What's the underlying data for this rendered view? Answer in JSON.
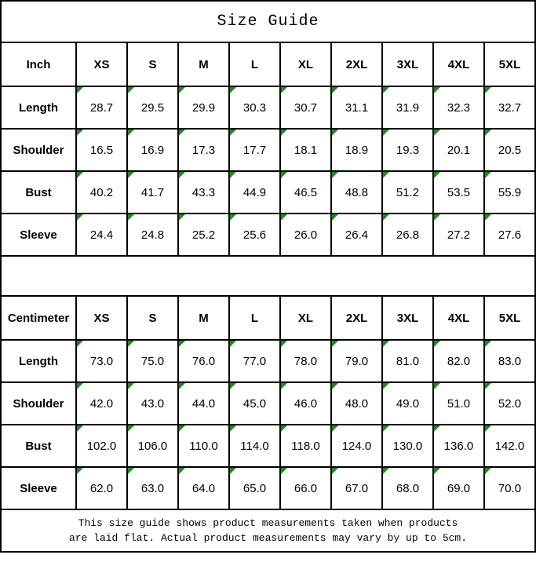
{
  "title": "Size Guide",
  "footer": {
    "line1": "This size guide shows product measurements taken when products",
    "line2": "are laid flat. Actual product measurements may vary by up to 5cm."
  },
  "colors": {
    "background": "#ffffff",
    "border": "#000000",
    "text": "#000000",
    "cell_flag_green": "#1f8a1f"
  },
  "icons": {
    "cell_corner_flag": "green-corner-triangle"
  },
  "chart_data": [
    {
      "type": "table",
      "title": "Size Guide (Inch)",
      "unit": "Inch",
      "columns": [
        "Inch",
        "XS",
        "S",
        "M",
        "L",
        "XL",
        "2XL",
        "3XL",
        "4XL",
        "5XL"
      ],
      "rows": [
        {
          "label": "Length",
          "values": [
            "28.7",
            "29.5",
            "29.9",
            "30.3",
            "30.7",
            "31.1",
            "31.9",
            "32.3",
            "32.7"
          ]
        },
        {
          "label": "Shoulder",
          "values": [
            "16.5",
            "16.9",
            "17.3",
            "17.7",
            "18.1",
            "18.9",
            "19.3",
            "20.1",
            "20.5"
          ]
        },
        {
          "label": "Bust",
          "values": [
            "40.2",
            "41.7",
            "43.3",
            "44.9",
            "46.5",
            "48.8",
            "51.2",
            "53.5",
            "55.9"
          ]
        },
        {
          "label": "Sleeve",
          "values": [
            "24.4",
            "24.8",
            "25.2",
            "25.6",
            "26.0",
            "26.4",
            "26.8",
            "27.2",
            "27.6"
          ]
        }
      ]
    },
    {
      "type": "table",
      "title": "Size Guide (Centimeter)",
      "unit": "Centimeter",
      "columns": [
        "Centimeter",
        "XS",
        "S",
        "M",
        "L",
        "XL",
        "2XL",
        "3XL",
        "4XL",
        "5XL"
      ],
      "rows": [
        {
          "label": "Length",
          "values": [
            "73.0",
            "75.0",
            "76.0",
            "77.0",
            "78.0",
            "79.0",
            "81.0",
            "82.0",
            "83.0"
          ]
        },
        {
          "label": "Shoulder",
          "values": [
            "42.0",
            "43.0",
            "44.0",
            "45.0",
            "46.0",
            "48.0",
            "49.0",
            "51.0",
            "52.0"
          ]
        },
        {
          "label": "Bust",
          "values": [
            "102.0",
            "106.0",
            "110.0",
            "114.0",
            "118.0",
            "124.0",
            "130.0",
            "136.0",
            "142.0"
          ]
        },
        {
          "label": "Sleeve",
          "values": [
            "62.0",
            "63.0",
            "64.0",
            "65.0",
            "66.0",
            "67.0",
            "68.0",
            "69.0",
            "70.0"
          ]
        }
      ]
    }
  ]
}
